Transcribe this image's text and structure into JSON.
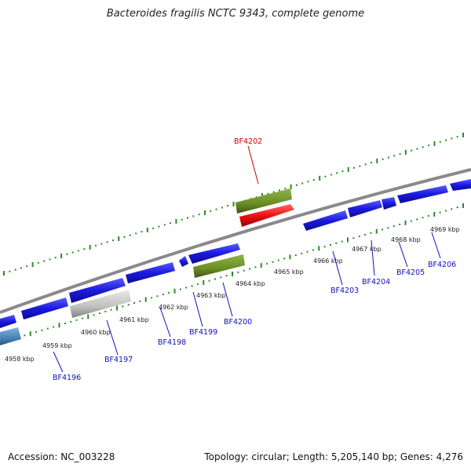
{
  "title": "Bacteroides fragilis NCTC 9343, complete genome",
  "footer": {
    "accession": "Accession: NC_003228",
    "summary": "Topology: circular; Length: 5,205,140 bp; Genes: 4,276"
  },
  "colors": {
    "backbone": "#808080",
    "tick": "#2a8a2a",
    "gene_forward": "#1a1adf",
    "gene_reverse": "#1a1adf",
    "gene_green": "#6b8e23",
    "gene_gray": "#c0c0c0",
    "gene_red": "#ee1111",
    "gene_steel": "#4682b4",
    "label_blue": "#1010c0",
    "label_red": "#cc0000"
  },
  "kbp_labels": [
    "4958 kbp",
    "4959 kbp",
    "4960 kbp",
    "4961 kbp",
    "4962 kbp",
    "4963 kbp",
    "4964 kbp",
    "4965 kbp",
    "4966 kbp",
    "4967 kbp",
    "4968 kbp",
    "4969 kbp"
  ],
  "gene_labels": [
    "BF4196",
    "BF4197",
    "BF4198",
    "BF4199",
    "BF4200",
    "BF4202",
    "BF4203",
    "BF4204",
    "BF4205",
    "BF4206"
  ]
}
